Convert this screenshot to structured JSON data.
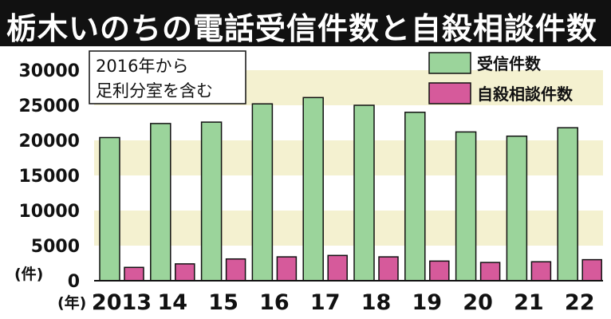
{
  "title": "栃木いのちの電話受信件数と自殺相談件数",
  "chart_data": {
    "type": "bar",
    "categories": [
      "2013",
      "14",
      "15",
      "16",
      "17",
      "18",
      "19",
      "20",
      "21",
      "22"
    ],
    "series": [
      {
        "name": "受信件数",
        "values": [
          20400,
          22400,
          22600,
          25200,
          26100,
          25000,
          24000,
          21200,
          20600,
          21800
        ]
      },
      {
        "name": "自殺相談件数",
        "values": [
          1900,
          2400,
          3100,
          3400,
          3600,
          3400,
          2800,
          2600,
          2700,
          3000
        ]
      }
    ],
    "ylim": [
      0,
      30000
    ],
    "yticks": [
      0,
      5000,
      10000,
      15000,
      20000,
      25000,
      30000
    ],
    "ytick_labels": [
      "0",
      "5000",
      "10000",
      "15000",
      "20000",
      "25000",
      "30000"
    ],
    "y_unit_label": "(件)",
    "x_unit_label": "(年)",
    "legend": {
      "position": "top-right",
      "entries": [
        "受信件数",
        "自殺相談件数"
      ]
    },
    "annotation": {
      "lines": [
        "2016年から",
        "足利分室を含む"
      ]
    },
    "colors": {
      "received": "#9bd49b",
      "suicide": "#d65a9b",
      "band": "#f4f1d0",
      "title_bg": "#111111"
    }
  }
}
